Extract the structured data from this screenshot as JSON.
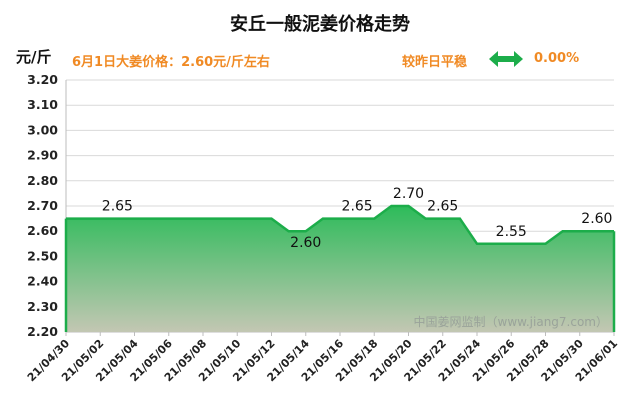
{
  "header": {
    "title": "安丘一般泥姜价格走势",
    "unit": "元/斤",
    "price_note": "6月1日大姜价格：2.60元/斤左右",
    "compare_label": "较昨日平稳",
    "change": "0.00%"
  },
  "colors": {
    "line": "#1cad4a",
    "fill_top": "#2dbb5a",
    "fill_bottom": "#c3c7b3",
    "accent": "#f08a24",
    "grid": "#d9d9d9"
  },
  "icons": {
    "change_indicator": "double-arrow-icon"
  },
  "watermark": "中国姜网监制（www.jiang7.com）",
  "chart_data": {
    "type": "area",
    "title": "安丘一般泥姜价格走势",
    "ylabel": "元/斤",
    "ylim": [
      2.2,
      3.2
    ],
    "ytick_step": 0.1,
    "grid": true,
    "x": [
      "21/04/30",
      "21/05/01",
      "21/05/02",
      "21/05/03",
      "21/05/04",
      "21/05/05",
      "21/05/06",
      "21/05/07",
      "21/05/08",
      "21/05/09",
      "21/05/10",
      "21/05/11",
      "21/05/12",
      "21/05/13",
      "21/05/14",
      "21/05/15",
      "21/05/16",
      "21/05/17",
      "21/05/18",
      "21/05/19",
      "21/05/20",
      "21/05/21",
      "21/05/22",
      "21/05/23",
      "21/05/24",
      "21/05/25",
      "21/05/26",
      "21/05/27",
      "21/05/28",
      "21/05/29",
      "21/05/30",
      "21/05/31",
      "21/06/01"
    ],
    "x_tick_labels": [
      "21/04/30",
      "21/05/02",
      "21/05/04",
      "21/05/06",
      "21/05/08",
      "21/05/10",
      "21/05/12",
      "21/05/14",
      "21/05/16",
      "21/05/18",
      "21/05/20",
      "21/05/22",
      "21/05/24",
      "21/05/26",
      "21/05/28",
      "21/05/30",
      "21/06/01"
    ],
    "values": [
      2.65,
      2.65,
      2.65,
      2.65,
      2.65,
      2.65,
      2.65,
      2.65,
      2.65,
      2.65,
      2.65,
      2.65,
      2.65,
      2.6,
      2.6,
      2.65,
      2.65,
      2.65,
      2.65,
      2.7,
      2.7,
      2.65,
      2.65,
      2.65,
      2.55,
      2.55,
      2.55,
      2.55,
      2.55,
      2.6,
      2.6,
      2.6,
      2.6
    ],
    "data_labels": [
      {
        "x": "21/05/03",
        "text": "2.65"
      },
      {
        "x": "21/05/14",
        "text": "2.60"
      },
      {
        "x": "21/05/17",
        "text": "2.65"
      },
      {
        "x": "21/05/20",
        "text": "2.70"
      },
      {
        "x": "21/05/22",
        "text": "2.65"
      },
      {
        "x": "21/05/26",
        "text": "2.55"
      },
      {
        "x": "21/05/31",
        "text": "2.60"
      }
    ]
  }
}
